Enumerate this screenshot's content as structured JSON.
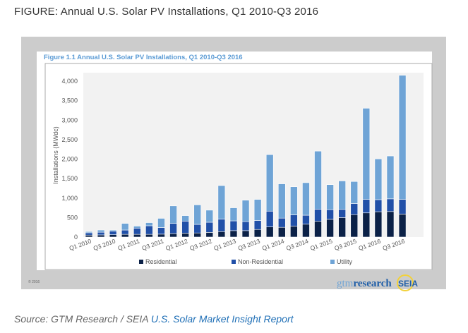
{
  "page_title": "FIGURE: Annual U.S. Solar PV Installations, Q1 2010-Q3 2016",
  "source_prefix": "Source: GTM Research / SEIA ",
  "source_link": "U.S. Solar Market Insight Report",
  "copyright": "© 2016",
  "logos": {
    "gtm": "gtmresearch",
    "seia": "SEIA"
  },
  "colors": {
    "residential": "#0b2147",
    "non_residential": "#2150a8",
    "utility": "#6fa4d6",
    "plot_bg": "#f2f2f2",
    "title": "#5b9bd5"
  },
  "chart_data": {
    "type": "bar",
    "stacked": true,
    "title": "Figure 1.1 Annual U.S. Solar PV Installations, Q1 2010-Q3 2016",
    "ylabel": "Installations (MWdc)",
    "xlabel": "",
    "ylim": [
      0,
      4000
    ],
    "yticks": [
      "0",
      "500",
      "1,000",
      "1,500",
      "2,000",
      "2,500",
      "3,000",
      "3,500",
      "4,000"
    ],
    "categories": [
      "Q1 2010",
      "Q2 2010",
      "Q3 2010",
      "Q4 2010",
      "Q1 2011",
      "Q2 2011",
      "Q3 2011",
      "Q4 2011",
      "Q1 2012",
      "Q2 2012",
      "Q3 2012",
      "Q4 2012",
      "Q1 2013",
      "Q2 2013",
      "Q3 2013",
      "Q4 2013",
      "Q1 2014",
      "Q2 2014",
      "Q3 2014",
      "Q4 2014",
      "Q1 2015",
      "Q2 2015",
      "Q3 2015",
      "Q4 2015",
      "Q1 2016",
      "Q2 2016",
      "Q3 2016"
    ],
    "xtick_labels": [
      "Q1 2010",
      "Q3 2010",
      "Q1 2011",
      "Q3 2011",
      "Q1 2012",
      "Q3 2012",
      "Q1 2013",
      "Q3 2013",
      "Q1 2014",
      "Q3 2014",
      "Q1 2015",
      "Q3 2015",
      "Q1 2016",
      "Q3 2016"
    ],
    "legend_position": "bottom",
    "series": [
      {
        "name": "Residential",
        "values": [
          50,
          55,
          60,
          70,
          70,
          70,
          75,
          90,
          100,
          105,
          120,
          140,
          165,
          165,
          195,
          260,
          250,
          280,
          330,
          405,
          455,
          500,
          575,
          620,
          650,
          655,
          590
        ]
      },
      {
        "name": "Non-Residential",
        "values": [
          60,
          70,
          90,
          110,
          160,
          220,
          170,
          260,
          310,
          220,
          260,
          320,
          250,
          230,
          230,
          405,
          235,
          290,
          230,
          310,
          250,
          210,
          285,
          345,
          310,
          325,
          375
        ]
      },
      {
        "name": "Utility",
        "values": [
          30,
          55,
          30,
          170,
          50,
          80,
          235,
          450,
          140,
          500,
          310,
          860,
          335,
          550,
          540,
          1450,
          880,
          720,
          835,
          1490,
          640,
          730,
          565,
          2340,
          1045,
          1100,
          3185
        ]
      }
    ]
  }
}
